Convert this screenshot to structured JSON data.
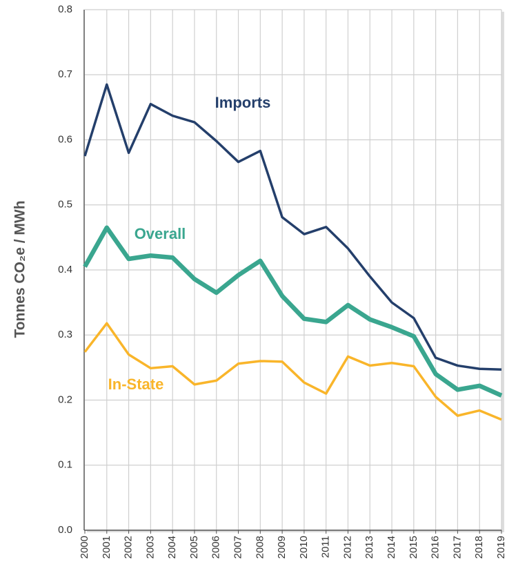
{
  "chart_data": {
    "type": "line",
    "ylabel": "Tonnes CO₂e / MWh",
    "categories": [
      "2000",
      "2001",
      "2002",
      "2003",
      "2004",
      "2005",
      "2006",
      "2007",
      "2008",
      "2009",
      "2010",
      "2011",
      "2012",
      "2013",
      "2014",
      "2015",
      "2016",
      "2017",
      "2018",
      "2019"
    ],
    "series": [
      {
        "name": "Imports",
        "color": "#243f6b",
        "values": [
          0.575,
          0.685,
          0.58,
          0.655,
          0.637,
          0.627,
          0.598,
          0.566,
          0.583,
          0.481,
          0.455,
          0.466,
          0.433,
          0.39,
          0.35,
          0.326,
          0.265,
          0.253,
          0.248,
          0.247
        ]
      },
      {
        "name": "Overall",
        "color": "#3aa68f",
        "values": [
          0.405,
          0.465,
          0.417,
          0.422,
          0.419,
          0.386,
          0.365,
          0.392,
          0.414,
          0.36,
          0.325,
          0.32,
          0.346,
          0.324,
          0.312,
          0.298,
          0.24,
          0.216,
          0.222,
          0.207
        ]
      },
      {
        "name": "In-State",
        "color": "#f9b52a",
        "values": [
          0.274,
          0.318,
          0.27,
          0.249,
          0.252,
          0.224,
          0.23,
          0.256,
          0.26,
          0.259,
          0.227,
          0.21,
          0.267,
          0.253,
          0.257,
          0.252,
          0.205,
          0.176,
          0.184,
          0.17
        ]
      }
    ],
    "ylim": [
      0,
      0.8
    ],
    "yticks": [
      {
        "value": 0,
        "label": "0.0"
      },
      0.1,
      0.2,
      0.3,
      0.4,
      0.5,
      0.6,
      0.7,
      0.8
    ],
    "grid": true
  }
}
